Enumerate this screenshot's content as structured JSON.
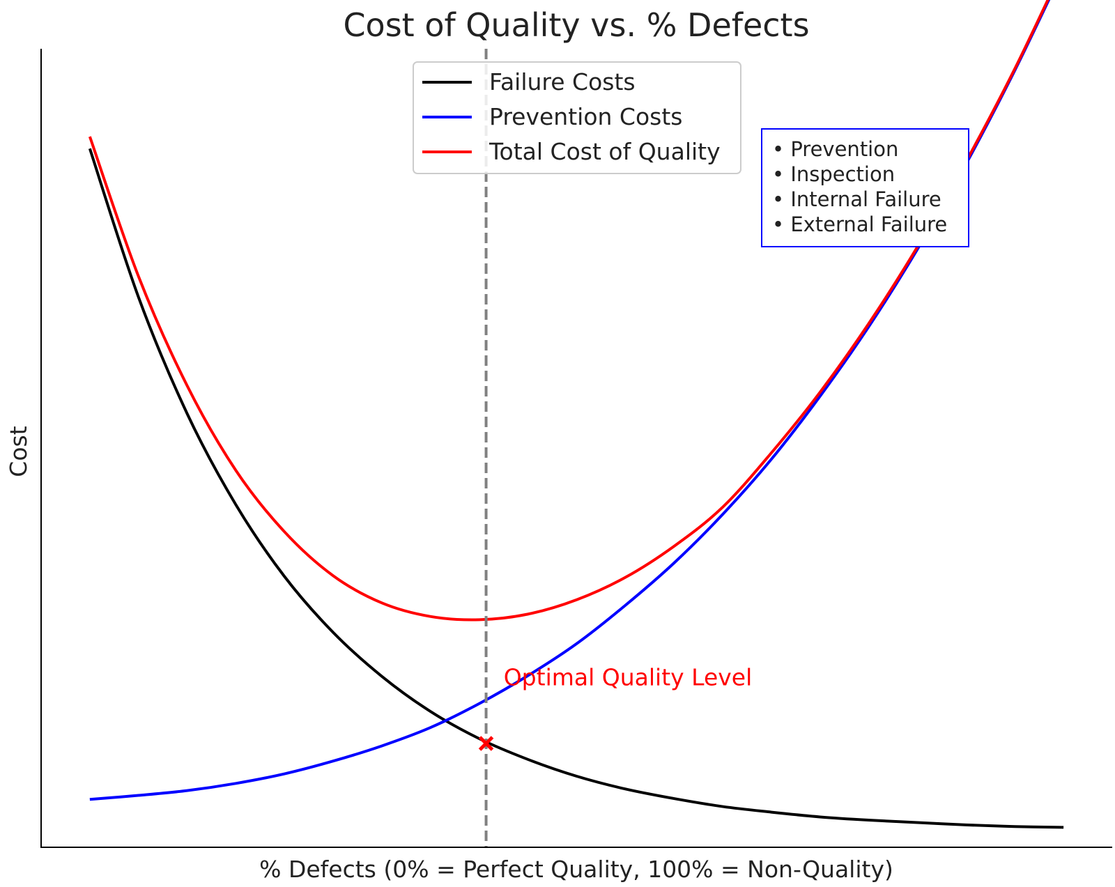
{
  "chart_data": {
    "type": "line",
    "title": "Cost of Quality vs. % Defects",
    "xlabel": "% Defects (0% = Perfect Quality, 100% = Non-Quality)",
    "ylabel": "Cost",
    "xlim": [
      -5,
      105
    ],
    "ylim": [
      0,
      100
    ],
    "x_ticks_visible": false,
    "y_ticks_visible": false,
    "grid": false,
    "legend_position": "top-center",
    "series": [
      {
        "name": "Failure Costs",
        "color": "#000000",
        "x": [
          0,
          5,
          10,
          15,
          20,
          25,
          30,
          35,
          40,
          45,
          50,
          55,
          60,
          65,
          70,
          75,
          80,
          85,
          90,
          95,
          100
        ],
        "y": [
          87.5,
          68.9,
          54.3,
          42.9,
          33.9,
          26.9,
          21.4,
          17.0,
          13.6,
          11.0,
          8.9,
          7.3,
          6.1,
          5.1,
          4.4,
          3.8,
          3.4,
          3.1,
          2.8,
          2.6,
          2.5
        ]
      },
      {
        "name": "Prevention Costs",
        "color": "#0000ff",
        "x": [
          0,
          5,
          10,
          15,
          20,
          25,
          30,
          35,
          40,
          45,
          50,
          55,
          60,
          65,
          70,
          75,
          80,
          85,
          90,
          95,
          100
        ],
        "y": [
          6.0,
          6.5,
          7.1,
          8.0,
          9.2,
          10.8,
          12.7,
          15.0,
          18.0,
          21.5,
          25.5,
          30.3,
          35.6,
          41.7,
          48.6,
          56.5,
          65.2,
          74.9,
          85.6,
          97.3,
          110.0
        ]
      },
      {
        "name": "Total Cost of Quality",
        "color": "#ff0000",
        "x": [
          0,
          5,
          10,
          15,
          20,
          25,
          30,
          35,
          40,
          45,
          50,
          55,
          60,
          65,
          70,
          75,
          80,
          85,
          90,
          95,
          100
        ],
        "y": [
          89.0,
          71.5,
          57.8,
          47.2,
          39.5,
          34.0,
          30.6,
          28.9,
          28.5,
          29.2,
          31.0,
          33.8,
          37.7,
          42.6,
          49.4,
          57.0,
          65.6,
          75.2,
          85.9,
          97.5,
          110.3
        ]
      }
    ],
    "optimal_line": {
      "x": 40.7,
      "style": "dashed",
      "color": "#808080"
    },
    "optimal_marker": {
      "x": 40.7,
      "y": 13.0,
      "marker": "x",
      "color": "#ff0000"
    },
    "annotations": [
      {
        "text": "Optimal Quality Level",
        "x": 42.5,
        "y": 20.3,
        "color": "#ff0000"
      }
    ],
    "info_box": {
      "items": [
        "• Prevention",
        "• Inspection",
        "• Internal Failure",
        "• External Failure"
      ],
      "border_color": "#0000ff"
    }
  }
}
